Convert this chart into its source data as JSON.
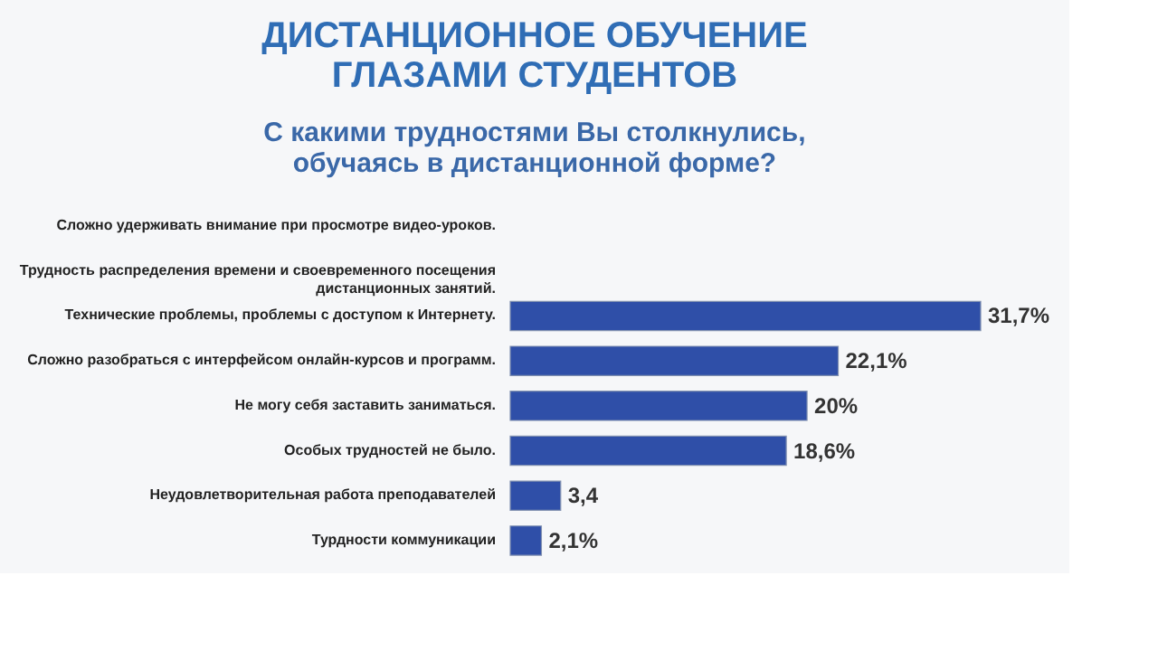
{
  "chart_data": {
    "type": "bar",
    "orientation": "horizontal",
    "title": "ДИСТАНЦИОННОЕ ОБУЧЕНИЕ ГЛАЗАМИ СТУДЕНТОВ",
    "subtitle": "С какими трудностями Вы столкнулись, обучаясь в дистанционной форме?",
    "categories": [
      "Сложно удерживать внимание при просмотре видео-уроков.",
      "Трудность распределения времени и своевременного посещения дистанционных занятий.",
      "Технические проблемы, проблемы с доступом к Интернету.",
      "Сложно разобраться с интерфейсом онлайн-курсов и программ.",
      "Не могу себя заставить заниматься.",
      "Особых трудностей не было.",
      "Неудовлетворительная работа преподавателей",
      "Турдности коммуникации"
    ],
    "values": [
      null,
      null,
      31.7,
      22.1,
      20,
      18.6,
      3.4,
      2.1
    ],
    "value_labels": [
      null,
      null,
      "31,7%",
      "22,1%",
      "20%",
      "18,6%",
      "3,4",
      "2,1%"
    ],
    "color": "#2f4fa8"
  }
}
